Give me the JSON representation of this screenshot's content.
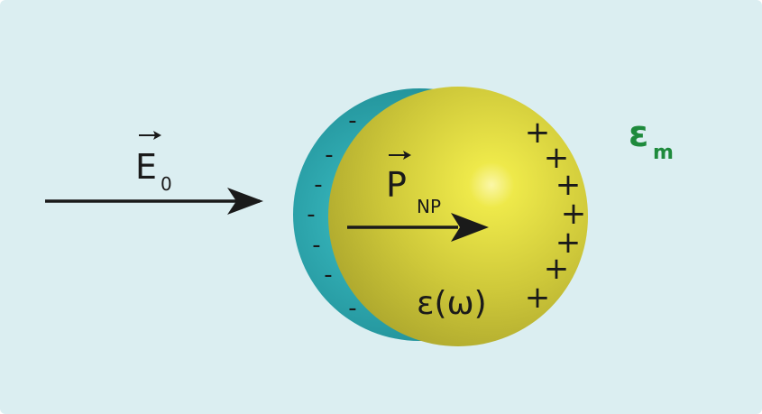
{
  "field_label": {
    "symbol": "E",
    "subscript": "0"
  },
  "polarization_label": {
    "symbol": "P",
    "subscript": "NP"
  },
  "particle_permittivity": "ε(ω)",
  "medium_permittivity": {
    "symbol": "ε",
    "subscript": "m"
  },
  "negative_charges": [
    "-",
    "-",
    "-",
    "-",
    "-",
    "-",
    "-",
    "-"
  ],
  "positive_charges": [
    "+",
    "+",
    "+",
    "+",
    "+",
    "+",
    "+"
  ],
  "colors": {
    "background": "#dbeef1",
    "shell": "#2aa6ae",
    "particle": "#c9c33a",
    "highlight": "#f7f25f",
    "medium_label": "#1e8a3c",
    "ink": "#1a1a1a"
  }
}
